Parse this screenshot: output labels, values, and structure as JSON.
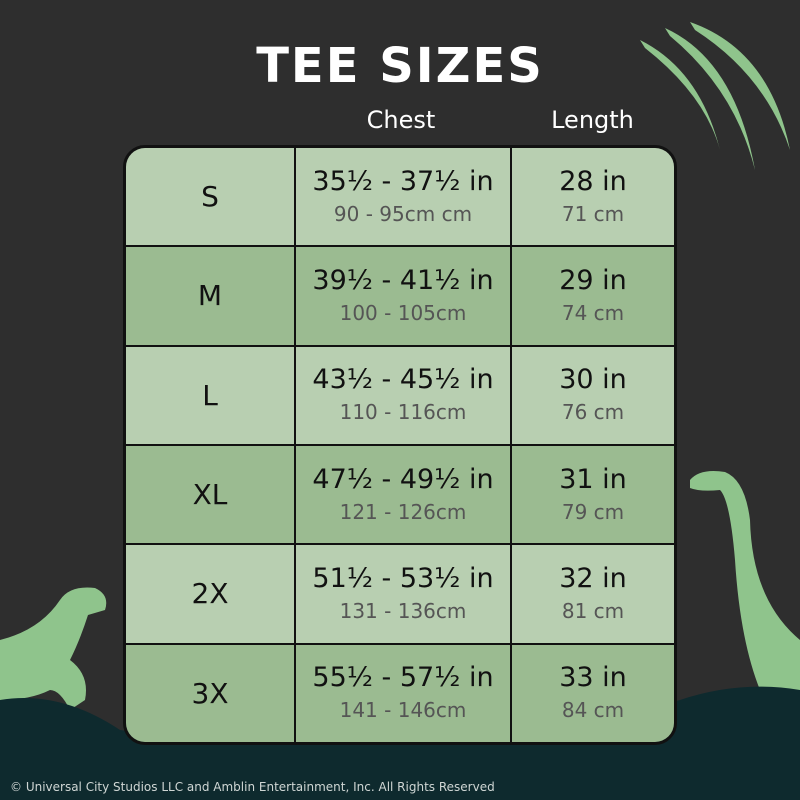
{
  "title": "TEE SIZES",
  "headers": {
    "chest": "Chest",
    "length": "Length"
  },
  "rows": [
    {
      "size": "S",
      "chest_in": "35½ - 37½ in",
      "chest_cm": "90 - 95cm cm",
      "length_in": "28 in",
      "length_cm": "71 cm"
    },
    {
      "size": "M",
      "chest_in": "39½ - 41½ in",
      "chest_cm": "100 - 105cm",
      "length_in": "29 in",
      "length_cm": "74 cm"
    },
    {
      "size": "L",
      "chest_in": "43½ - 45½  in",
      "chest_cm": "110 - 116cm",
      "length_in": "30 in",
      "length_cm": "76 cm"
    },
    {
      "size": "XL",
      "chest_in": "47½ - 49½ in",
      "chest_cm": "121 - 126cm",
      "length_in": "31 in",
      "length_cm": "79 cm"
    },
    {
      "size": "2X",
      "chest_in": "51½ - 53½ in",
      "chest_cm": "131 - 136cm",
      "length_in": "32 in",
      "length_cm": "81 cm"
    },
    {
      "size": "3X",
      "chest_in": "55½ - 57½ in",
      "chest_cm": "141 - 146cm",
      "length_in": "33 in",
      "length_cm": "84 cm"
    }
  ],
  "copyright": "© Universal City Studios LLC and Amblin Entertainment, Inc. All Rights Reserved",
  "colors": {
    "background": "#2e2e2e",
    "row_light": "#b8cfb1",
    "row_dark": "#9bbb91",
    "dino": "#8fc48c",
    "jungle": "#0e2a2e"
  }
}
